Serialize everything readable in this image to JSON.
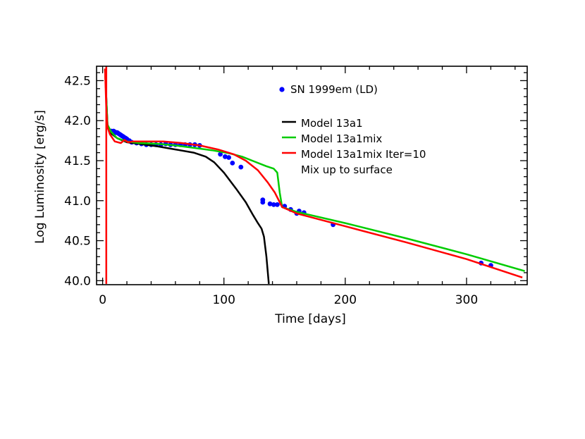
{
  "chart_data": {
    "type": "line",
    "xlabel": "Time [days]",
    "ylabel": "Log Luminosity [erg/s]",
    "xlim": [
      -5,
      350
    ],
    "ylim": [
      39.95,
      42.68
    ],
    "xticks": [
      0,
      100,
      200,
      300
    ],
    "xtick_labels": [
      "0",
      "100",
      "200",
      "300"
    ],
    "yticks": [
      40.0,
      40.5,
      41.0,
      41.5,
      42.0,
      42.5
    ],
    "ytick_labels": [
      "40.0",
      "40.5",
      "41.0",
      "41.5",
      "42.0",
      "42.5"
    ],
    "legend_position": "top-right inside",
    "extra_note": "Mix up to surface",
    "series": [
      {
        "name": "SN 1999em (LD)",
        "kind": "scatter",
        "color": "#0000ff",
        "points": [
          [
            7,
            41.87
          ],
          [
            9,
            41.87
          ],
          [
            10,
            41.86
          ],
          [
            11,
            41.85
          ],
          [
            12,
            41.85
          ],
          [
            13,
            41.84
          ],
          [
            14,
            41.83
          ],
          [
            15,
            41.82
          ],
          [
            16,
            41.81
          ],
          [
            17,
            41.8
          ],
          [
            18,
            41.79
          ],
          [
            19,
            41.78
          ],
          [
            20,
            41.77
          ],
          [
            22,
            41.75
          ],
          [
            24,
            41.73
          ],
          [
            28,
            41.72
          ],
          [
            32,
            41.71
          ],
          [
            36,
            41.7
          ],
          [
            40,
            41.7
          ],
          [
            44,
            41.7
          ],
          [
            48,
            41.7
          ],
          [
            52,
            41.71
          ],
          [
            56,
            41.7
          ],
          [
            60,
            41.7
          ],
          [
            64,
            41.7
          ],
          [
            68,
            41.7
          ],
          [
            72,
            41.7
          ],
          [
            76,
            41.7
          ],
          [
            80,
            41.69
          ],
          [
            97,
            41.58
          ],
          [
            101,
            41.55
          ],
          [
            104,
            41.54
          ],
          [
            107,
            41.47
          ],
          [
            114,
            41.42
          ],
          [
            132,
            41.01
          ],
          [
            132,
            40.98
          ],
          [
            138,
            40.96
          ],
          [
            141,
            40.95
          ],
          [
            144,
            40.95
          ],
          [
            150,
            40.93
          ],
          [
            155,
            40.89
          ],
          [
            160,
            40.84
          ],
          [
            162,
            40.87
          ],
          [
            166,
            40.85
          ],
          [
            190,
            40.7
          ],
          [
            312,
            40.22
          ],
          [
            320,
            40.19
          ]
        ]
      },
      {
        "name": "Model 13a1",
        "kind": "line",
        "color": "#000000",
        "points": [
          [
            2,
            42.65
          ],
          [
            4,
            41.95
          ],
          [
            7,
            41.84
          ],
          [
            12,
            41.78
          ],
          [
            20,
            41.73
          ],
          [
            30,
            41.71
          ],
          [
            45,
            41.68
          ],
          [
            60,
            41.64
          ],
          [
            75,
            41.6
          ],
          [
            85,
            41.55
          ],
          [
            92,
            41.48
          ],
          [
            100,
            41.35
          ],
          [
            110,
            41.15
          ],
          [
            118,
            40.98
          ],
          [
            124,
            40.82
          ],
          [
            128,
            40.72
          ],
          [
            131,
            40.65
          ],
          [
            133,
            40.55
          ],
          [
            135,
            40.3
          ],
          [
            137,
            39.96
          ]
        ]
      },
      {
        "name": "Model 13a1mix",
        "kind": "line",
        "color": "#00cc00",
        "points": [
          [
            2,
            42.65
          ],
          [
            4,
            41.95
          ],
          [
            7,
            41.86
          ],
          [
            12,
            41.78
          ],
          [
            20,
            41.74
          ],
          [
            30,
            41.72
          ],
          [
            45,
            41.71
          ],
          [
            60,
            41.69
          ],
          [
            75,
            41.66
          ],
          [
            90,
            41.63
          ],
          [
            105,
            41.59
          ],
          [
            115,
            41.55
          ],
          [
            125,
            41.49
          ],
          [
            135,
            41.43
          ],
          [
            141,
            41.4
          ],
          [
            144,
            41.35
          ],
          [
            146,
            41.1
          ],
          [
            148,
            40.92
          ],
          [
            160,
            40.86
          ],
          [
            200,
            40.72
          ],
          [
            250,
            40.53
          ],
          [
            300,
            40.33
          ],
          [
            348,
            40.12
          ]
        ]
      },
      {
        "name": "Model 13a1mix Iter=10",
        "kind": "line",
        "color": "#ff0000",
        "points": [
          [
            2,
            42.65
          ],
          [
            3,
            42.15
          ],
          [
            4,
            41.92
          ],
          [
            6,
            41.83
          ],
          [
            10,
            41.74
          ],
          [
            15,
            41.72
          ],
          [
            18,
            41.76
          ],
          [
            21,
            41.73
          ],
          [
            25,
            41.74
          ],
          [
            35,
            41.74
          ],
          [
            50,
            41.74
          ],
          [
            65,
            41.72
          ],
          [
            80,
            41.69
          ],
          [
            95,
            41.64
          ],
          [
            108,
            41.58
          ],
          [
            118,
            41.5
          ],
          [
            128,
            41.38
          ],
          [
            136,
            41.23
          ],
          [
            142,
            41.1
          ],
          [
            146,
            40.98
          ],
          [
            148,
            40.92
          ],
          [
            160,
            40.84
          ],
          [
            200,
            40.68
          ],
          [
            250,
            40.48
          ],
          [
            300,
            40.27
          ],
          [
            346,
            40.04
          ]
        ]
      },
      {
        "name": "",
        "kind": "line",
        "color": "#ff0000",
        "points": [
          [
            3,
            39.96
          ],
          [
            3,
            42.68
          ]
        ]
      }
    ]
  }
}
